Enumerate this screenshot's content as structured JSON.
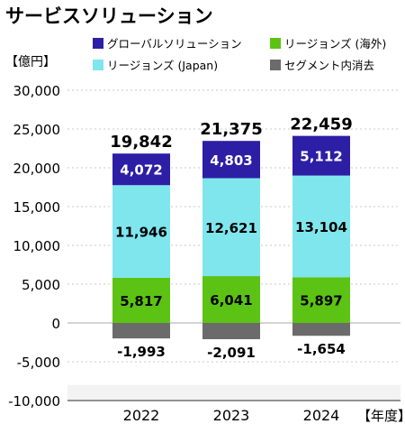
{
  "title": "サービスソリューション",
  "unit_label": "【億円】",
  "year_label": "【年度】",
  "legend": [
    {
      "label": "グローバルソリューション",
      "color": "#2d1ea6"
    },
    {
      "label": "リージョンズ (海外)",
      "color": "#5cc314"
    },
    {
      "label": "リージョンズ (Japan)",
      "color": "#7fe6ee"
    },
    {
      "label": "セグメント内消去",
      "color": "#6b6b6b"
    }
  ],
  "chart_data": {
    "type": "bar",
    "stacked": true,
    "title": "サービスソリューション",
    "ylabel": "【億円】",
    "xlabel": "【年度】",
    "categories": [
      "2022",
      "2023",
      "2024"
    ],
    "ylim": [
      -10000,
      30000
    ],
    "yticks": [
      30000,
      25000,
      20000,
      15000,
      10000,
      5000,
      0,
      -5000,
      -10000
    ],
    "ytick_labels": [
      "30,000",
      "25,000",
      "20,000",
      "15,000",
      "10,000",
      "5,000",
      "0",
      "-5,000",
      "-10,000"
    ],
    "grid": true,
    "legend_position": "top",
    "totals": [
      19842,
      21375,
      22459
    ],
    "total_labels": [
      "19,842",
      "21,375",
      "22,459"
    ],
    "series": [
      {
        "name": "リージョンズ (海外)",
        "color": "#5cc314",
        "values": [
          5817,
          6041,
          5897
        ],
        "labels": [
          "5,817",
          "6,041",
          "5,897"
        ]
      },
      {
        "name": "リージョンズ (Japan)",
        "color": "#7fe6ee",
        "values": [
          11946,
          12621,
          13104
        ],
        "labels": [
          "11,946",
          "12,621",
          "13,104"
        ]
      },
      {
        "name": "グローバルソリューション",
        "color": "#2d1ea6",
        "values": [
          4072,
          4803,
          5112
        ],
        "labels": [
          "4,072",
          "4,803",
          "5,112"
        ]
      },
      {
        "name": "セグメント内消去",
        "color": "#6b6b6b",
        "values": [
          -1993,
          -2091,
          -1654
        ],
        "labels": [
          "-1,993",
          "-2,091",
          "-1,654"
        ]
      }
    ]
  }
}
